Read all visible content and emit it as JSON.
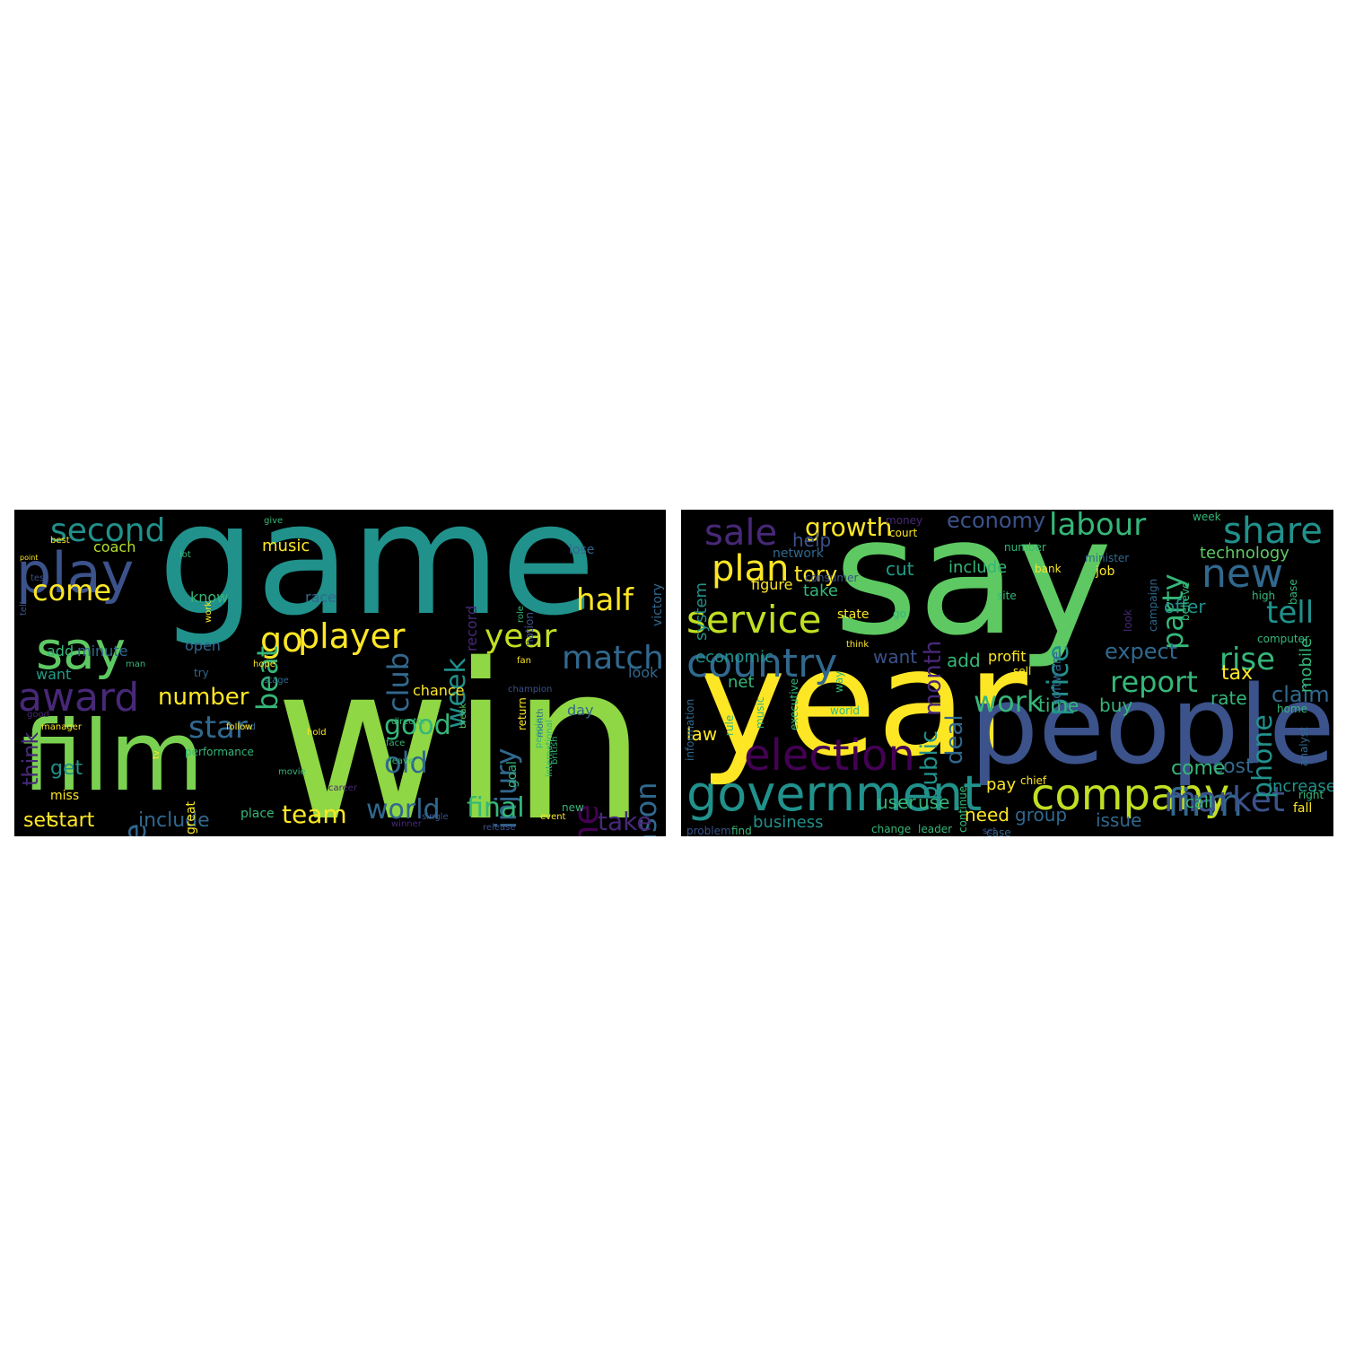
{
  "wordclouds": [
    {
      "words": [
        {
          "text": "game",
          "color": "#21918c"
        },
        {
          "text": "win",
          "color": "#8fd744"
        },
        {
          "text": "film",
          "color": "#7ad151"
        },
        {
          "text": "play",
          "color": "#3b528b"
        },
        {
          "text": "say",
          "color": "#5ec962"
        },
        {
          "text": "award",
          "color": "#482878"
        },
        {
          "text": "second",
          "color": "#21918c"
        },
        {
          "text": "come",
          "color": "#fde725"
        },
        {
          "text": "player",
          "color": "#fde725"
        },
        {
          "text": "year",
          "color": "#c2df23"
        },
        {
          "text": "match",
          "color": "#31688e"
        },
        {
          "text": "half",
          "color": "#fde725"
        },
        {
          "text": "go",
          "color": "#fde725"
        },
        {
          "text": "club",
          "color": "#31688e"
        },
        {
          "text": "beat",
          "color": "#35b779"
        },
        {
          "text": "week",
          "color": "#21918c"
        },
        {
          "text": "number",
          "color": "#fde725"
        },
        {
          "text": "star",
          "color": "#31688e"
        },
        {
          "text": "title",
          "color": "#31688e"
        },
        {
          "text": "good",
          "color": "#35b779"
        },
        {
          "text": "old",
          "color": "#31688e"
        },
        {
          "text": "injury",
          "color": "#31688e"
        },
        {
          "text": "time",
          "color": "#440154"
        },
        {
          "text": "season",
          "color": "#31688e"
        },
        {
          "text": "team",
          "color": "#fde725"
        },
        {
          "text": "world",
          "color": "#31688e"
        },
        {
          "text": "final",
          "color": "#35b779"
        },
        {
          "text": "take",
          "color": "#482878"
        },
        {
          "text": "set",
          "color": "#fde725"
        },
        {
          "text": "start",
          "color": "#fde725"
        },
        {
          "text": "include",
          "color": "#31688e"
        },
        {
          "text": "get",
          "color": "#21918c"
        },
        {
          "text": "music",
          "color": "#fde725"
        },
        {
          "text": "coach",
          "color": "#b5de2b"
        },
        {
          "text": "add",
          "color": "#35b779"
        },
        {
          "text": "minute",
          "color": "#31688e"
        },
        {
          "text": "think",
          "color": "#482878"
        },
        {
          "text": "want",
          "color": "#1f9e89"
        },
        {
          "text": "know",
          "color": "#35b779"
        },
        {
          "text": "race",
          "color": "#31688e"
        },
        {
          "text": "open",
          "color": "#31688e"
        },
        {
          "text": "chance",
          "color": "#fde725"
        },
        {
          "text": "record",
          "color": "#482878"
        },
        {
          "text": "goal",
          "color": "#35b779"
        },
        {
          "text": "lose",
          "color": "#31688e"
        },
        {
          "text": "victory",
          "color": "#31688e"
        },
        {
          "text": "day",
          "color": "#31688e"
        },
        {
          "text": "look",
          "color": "#31688e"
        },
        {
          "text": "miss",
          "color": "#fde725"
        },
        {
          "text": "place",
          "color": "#35b779"
        },
        {
          "text": "great",
          "color": "#fde725"
        },
        {
          "text": "return",
          "color": "#fde725"
        },
        {
          "text": "break",
          "color": "#5ec962"
        },
        {
          "text": "nation",
          "color": "#3b528b"
        },
        {
          "text": "fan",
          "color": "#fde725"
        },
        {
          "text": "champion",
          "color": "#3b528b"
        },
        {
          "text": "director",
          "color": "#35b779"
        },
        {
          "text": "release",
          "color": "#3b528b"
        },
        {
          "text": "event",
          "color": "#fde725"
        },
        {
          "text": "new",
          "color": "#35b779"
        },
        {
          "text": "try",
          "color": "#31688e"
        },
        {
          "text": "man",
          "color": "#35b779"
        },
        {
          "text": "end",
          "color": "#31688e"
        },
        {
          "text": "movie",
          "color": "#35b779"
        },
        {
          "text": "work",
          "color": "#fde725"
        },
        {
          "text": "role",
          "color": "#35b779"
        },
        {
          "text": "lead",
          "color": "#35b779"
        },
        {
          "text": "face",
          "color": "#35b779"
        },
        {
          "text": "tv",
          "color": "#fde725"
        },
        {
          "text": "people",
          "color": "#35b779"
        },
        {
          "text": "performance",
          "color": "#35b779"
        },
        {
          "text": "follow",
          "color": "#fde725"
        },
        {
          "text": "stage",
          "color": "#31688e"
        },
        {
          "text": "hope",
          "color": "#fde725"
        },
        {
          "text": "hold",
          "color": "#fde725"
        },
        {
          "text": "leave",
          "color": "#35b779"
        },
        {
          "text": "point",
          "color": "#fde725"
        },
        {
          "text": "test",
          "color": "#3b528b"
        },
        {
          "text": "give",
          "color": "#35b779"
        },
        {
          "text": "tell",
          "color": "#3b528b"
        },
        {
          "text": "lot",
          "color": "#35b779"
        },
        {
          "text": "british",
          "color": "#35b779"
        },
        {
          "text": "single",
          "color": "#3b528b"
        },
        {
          "text": "winner",
          "color": "#482878"
        },
        {
          "text": "month",
          "color": "#31688e"
        },
        {
          "text": "career",
          "color": "#482878"
        },
        {
          "text": "manager",
          "color": "#fde725"
        },
        {
          "text": "international",
          "color": "#35b779"
        },
        {
          "text": "good",
          "color": "#482878"
        },
        {
          "text": "best",
          "color": "#fde725"
        }
      ]
    },
    {
      "words": [
        {
          "text": "say",
          "color": "#5ec962"
        },
        {
          "text": "year",
          "color": "#fde725"
        },
        {
          "text": "people",
          "color": "#3b528b"
        },
        {
          "text": "government",
          "color": "#21918c"
        },
        {
          "text": "election",
          "color": "#440154"
        },
        {
          "text": "company",
          "color": "#c2df23"
        },
        {
          "text": "firm",
          "color": "#31688e"
        },
        {
          "text": "market",
          "color": "#3b528b"
        },
        {
          "text": "country",
          "color": "#31688e"
        },
        {
          "text": "service",
          "color": "#c2df23"
        },
        {
          "text": "plan",
          "color": "#fde725"
        },
        {
          "text": "sale",
          "color": "#482878"
        },
        {
          "text": "growth",
          "color": "#fde725"
        },
        {
          "text": "month",
          "color": "#482878"
        },
        {
          "text": "deal",
          "color": "#31688e"
        },
        {
          "text": "public",
          "color": "#21918c"
        },
        {
          "text": "economy",
          "color": "#3b528b"
        },
        {
          "text": "labour",
          "color": "#35b779"
        },
        {
          "text": "party",
          "color": "#35b779"
        },
        {
          "text": "price",
          "color": "#21918c"
        },
        {
          "text": "share",
          "color": "#21918c"
        },
        {
          "text": "new",
          "color": "#31688e"
        },
        {
          "text": "tell",
          "color": "#21918c"
        },
        {
          "text": "technology",
          "color": "#5ec962"
        },
        {
          "text": "rise",
          "color": "#35b779"
        },
        {
          "text": "report",
          "color": "#35b779"
        },
        {
          "text": "work",
          "color": "#35b779"
        },
        {
          "text": "expect",
          "color": "#31688e"
        },
        {
          "text": "phone",
          "color": "#21918c"
        },
        {
          "text": "claim",
          "color": "#31688e"
        },
        {
          "text": "tax",
          "color": "#fde725"
        },
        {
          "text": "rate",
          "color": "#35b779"
        },
        {
          "text": "cost",
          "color": "#31688e"
        },
        {
          "text": "come",
          "color": "#35b779"
        },
        {
          "text": "offer",
          "color": "#21918c"
        },
        {
          "text": "mobile",
          "color": "#35b779"
        },
        {
          "text": "tory",
          "color": "#fde725"
        },
        {
          "text": "cut",
          "color": "#1f9e89"
        },
        {
          "text": "help",
          "color": "#3b528b"
        },
        {
          "text": "include",
          "color": "#35b779"
        },
        {
          "text": "system",
          "color": "#21918c"
        },
        {
          "text": "network",
          "color": "#31688e"
        },
        {
          "text": "figure",
          "color": "#fde725"
        },
        {
          "text": "take",
          "color": "#35b779"
        },
        {
          "text": "want",
          "color": "#3b528b"
        },
        {
          "text": "add",
          "color": "#35b779"
        },
        {
          "text": "profit",
          "color": "#fde725"
        },
        {
          "text": "economic",
          "color": "#21918c"
        },
        {
          "text": "law",
          "color": "#fde725"
        },
        {
          "text": "net",
          "color": "#35b779"
        },
        {
          "text": "time",
          "color": "#35b779"
        },
        {
          "text": "buy",
          "color": "#35b779"
        },
        {
          "text": "business",
          "color": "#21918c"
        },
        {
          "text": "user",
          "color": "#35b779"
        },
        {
          "text": "use",
          "color": "#35b779"
        },
        {
          "text": "need",
          "color": "#fde725"
        },
        {
          "text": "group",
          "color": "#31688e"
        },
        {
          "text": "pay",
          "color": "#fde725"
        },
        {
          "text": "issue",
          "color": "#31688e"
        },
        {
          "text": "call",
          "color": "#35b779"
        },
        {
          "text": "increase",
          "color": "#21918c"
        },
        {
          "text": "fall",
          "color": "#fde725"
        },
        {
          "text": "right",
          "color": "#35b779"
        },
        {
          "text": "state",
          "color": "#fde725"
        },
        {
          "text": "go",
          "color": "#35b779"
        },
        {
          "text": "think",
          "color": "#fde725"
        },
        {
          "text": "world",
          "color": "#35b779"
        },
        {
          "text": "site",
          "color": "#35b779"
        },
        {
          "text": "sell",
          "color": "#fde725"
        },
        {
          "text": "software",
          "color": "#31688e"
        },
        {
          "text": "job",
          "color": "#fde725"
        },
        {
          "text": "bank",
          "color": "#fde725"
        },
        {
          "text": "court",
          "color": "#fde725"
        },
        {
          "text": "minister",
          "color": "#31688e"
        },
        {
          "text": "number",
          "color": "#35b779"
        },
        {
          "text": "week",
          "color": "#35b779"
        },
        {
          "text": "analyst",
          "color": "#31688e"
        },
        {
          "text": "chief",
          "color": "#fde725"
        },
        {
          "text": "high",
          "color": "#35b779"
        },
        {
          "text": "base",
          "color": "#35b779"
        },
        {
          "text": "computer",
          "color": "#35b779"
        },
        {
          "text": "home",
          "color": "#35b779"
        },
        {
          "text": "change",
          "color": "#35b779"
        },
        {
          "text": "leader",
          "color": "#35b779"
        },
        {
          "text": "find",
          "color": "#35b779"
        },
        {
          "text": "information",
          "color": "#31688e"
        },
        {
          "text": "rule",
          "color": "#35b779"
        },
        {
          "text": "music",
          "color": "#35b779"
        },
        {
          "text": "executive",
          "color": "#35b779"
        },
        {
          "text": "way",
          "color": "#35b779"
        },
        {
          "text": "continue",
          "color": "#35b779"
        },
        {
          "text": "look",
          "color": "#482878"
        },
        {
          "text": "campaign",
          "color": "#31688e"
        },
        {
          "text": "believe",
          "color": "#35b779"
        },
        {
          "text": "problem",
          "color": "#3b528b"
        },
        {
          "text": "consumer",
          "color": "#3b528b"
        },
        {
          "text": "case",
          "color": "#31688e"
        },
        {
          "text": "money",
          "color": "#482878"
        },
        {
          "text": "set",
          "color": "#3b528b"
        }
      ]
    }
  ]
}
